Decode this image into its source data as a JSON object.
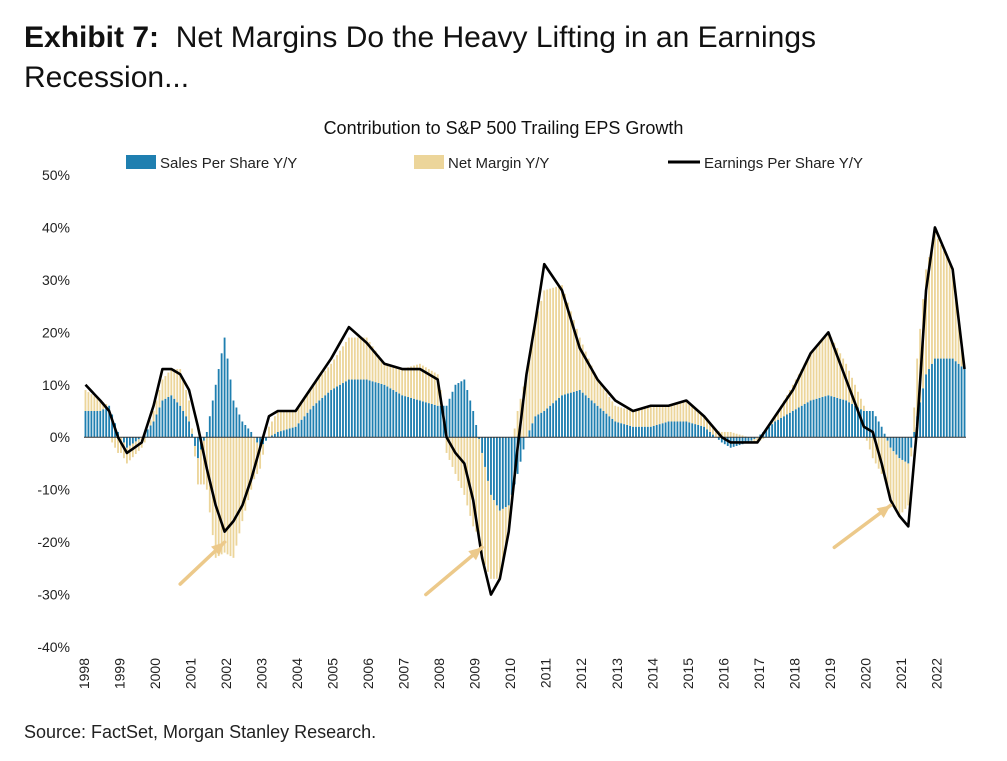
{
  "exhibit": {
    "label": "Exhibit 7:",
    "title": "Net Margins Do the Heavy Lifting in an Earnings Recession..."
  },
  "source": "Source: FactSet, Morgan Stanley Research.",
  "colors": {
    "sales": "#1f7fb0",
    "margin": "#ecd59a",
    "eps": "#000000",
    "arrow": "#ecc98a"
  },
  "chart_data": {
    "type": "bar",
    "title": "Contribution to S&P 500 Trailing EPS Growth",
    "xlabel": "",
    "ylabel": "",
    "ylim": [
      -40,
      50
    ],
    "y_ticks": [
      "-40%",
      "-30%",
      "-20%",
      "-10%",
      "0%",
      "10%",
      "20%",
      "30%",
      "40%",
      "50%"
    ],
    "x_tick_labels": [
      "1998",
      "1999",
      "2000",
      "2001",
      "2002",
      "2003",
      "2004",
      "2005",
      "2006",
      "2007",
      "2008",
      "2009",
      "2010",
      "2011",
      "2012",
      "2013",
      "2014",
      "2015",
      "2016",
      "2017",
      "2018",
      "2019",
      "2020",
      "2021",
      "2022"
    ],
    "legend_position": "top",
    "stacked": true,
    "frequency": "monthly",
    "start": "1998-01",
    "end": "2022-10",
    "series": [
      {
        "name": "Sales Per Share Y/Y",
        "kind": "bar",
        "anchors": [
          [
            "1998-01",
            5
          ],
          [
            "1998-06",
            5
          ],
          [
            "1998-09",
            6
          ],
          [
            "1998-12",
            1
          ],
          [
            "1999-03",
            -2
          ],
          [
            "1999-08",
            0
          ],
          [
            "1999-12",
            3
          ],
          [
            "2000-03",
            7
          ],
          [
            "2000-06",
            8
          ],
          [
            "2000-09",
            6
          ],
          [
            "2000-12",
            3
          ],
          [
            "2001-03",
            -4
          ],
          [
            "2001-06",
            1
          ],
          [
            "2001-09",
            10
          ],
          [
            "2001-12",
            19
          ],
          [
            "2002-03",
            7
          ],
          [
            "2002-06",
            3
          ],
          [
            "2002-09",
            1
          ],
          [
            "2002-12",
            -2
          ],
          [
            "2003-03",
            0
          ],
          [
            "2003-06",
            1
          ],
          [
            "2003-12",
            2
          ],
          [
            "2004-06",
            6
          ],
          [
            "2004-12",
            9
          ],
          [
            "2005-06",
            11
          ],
          [
            "2005-12",
            11
          ],
          [
            "2006-06",
            10
          ],
          [
            "2006-12",
            8
          ],
          [
            "2007-06",
            7
          ],
          [
            "2007-12",
            6
          ],
          [
            "2008-03",
            6
          ],
          [
            "2008-06",
            10
          ],
          [
            "2008-09",
            11
          ],
          [
            "2008-12",
            5
          ],
          [
            "2009-03",
            -3
          ],
          [
            "2009-06",
            -11
          ],
          [
            "2009-09",
            -14
          ],
          [
            "2009-12",
            -13
          ],
          [
            "2010-03",
            -7
          ],
          [
            "2010-06",
            0
          ],
          [
            "2010-09",
            4
          ],
          [
            "2010-12",
            5
          ],
          [
            "2011-06",
            8
          ],
          [
            "2011-12",
            9
          ],
          [
            "2012-06",
            6
          ],
          [
            "2012-12",
            3
          ],
          [
            "2013-06",
            2
          ],
          [
            "2013-12",
            2
          ],
          [
            "2014-06",
            3
          ],
          [
            "2014-12",
            3
          ],
          [
            "2015-06",
            2
          ],
          [
            "2015-12",
            -1
          ],
          [
            "2016-03",
            -2
          ],
          [
            "2016-09",
            -1
          ],
          [
            "2016-12",
            0
          ],
          [
            "2017-06",
            3
          ],
          [
            "2017-12",
            5
          ],
          [
            "2018-06",
            7
          ],
          [
            "2018-12",
            8
          ],
          [
            "2019-06",
            7
          ],
          [
            "2019-12",
            5
          ],
          [
            "2020-03",
            5
          ],
          [
            "2020-06",
            2
          ],
          [
            "2020-09",
            -2
          ],
          [
            "2020-12",
            -4
          ],
          [
            "2021-03",
            -5
          ],
          [
            "2021-06",
            4
          ],
          [
            "2021-09",
            12
          ],
          [
            "2021-12",
            15
          ],
          [
            "2022-06",
            15
          ],
          [
            "2022-10",
            13
          ]
        ]
      },
      {
        "name": "Net Margin Y/Y",
        "kind": "bar",
        "anchors": [
          [
            "1998-01",
            4
          ],
          [
            "1998-06",
            2
          ],
          [
            "1998-09",
            0
          ],
          [
            "1998-12",
            -3
          ],
          [
            "1999-03",
            -3
          ],
          [
            "1999-08",
            -2
          ],
          [
            "1999-12",
            2
          ],
          [
            "2000-03",
            4
          ],
          [
            "2000-06",
            5
          ],
          [
            "2000-09",
            7
          ],
          [
            "2000-12",
            4
          ],
          [
            "2001-03",
            -5
          ],
          [
            "2001-06",
            -10
          ],
          [
            "2001-09",
            -23
          ],
          [
            "2001-12",
            -22
          ],
          [
            "2002-03",
            -23
          ],
          [
            "2002-06",
            -16
          ],
          [
            "2002-09",
            -10
          ],
          [
            "2002-12",
            -4
          ],
          [
            "2003-03",
            2
          ],
          [
            "2003-06",
            4
          ],
          [
            "2003-12",
            3
          ],
          [
            "2004-06",
            4
          ],
          [
            "2004-12",
            5
          ],
          [
            "2005-06",
            8
          ],
          [
            "2005-12",
            8
          ],
          [
            "2006-06",
            4
          ],
          [
            "2006-12",
            5
          ],
          [
            "2007-06",
            7
          ],
          [
            "2007-12",
            6
          ],
          [
            "2008-03",
            -3
          ],
          [
            "2008-06",
            -7
          ],
          [
            "2008-09",
            -11
          ],
          [
            "2008-12",
            -17
          ],
          [
            "2009-03",
            -20
          ],
          [
            "2009-06",
            -16
          ],
          [
            "2009-09",
            -13
          ],
          [
            "2009-12",
            -5
          ],
          [
            "2010-03",
            5
          ],
          [
            "2010-06",
            12
          ],
          [
            "2010-09",
            18
          ],
          [
            "2010-12",
            23
          ],
          [
            "2011-06",
            21
          ],
          [
            "2011-12",
            10
          ],
          [
            "2012-06",
            5
          ],
          [
            "2012-12",
            3
          ],
          [
            "2013-06",
            3
          ],
          [
            "2013-12",
            4
          ],
          [
            "2014-06",
            3
          ],
          [
            "2014-12",
            4
          ],
          [
            "2015-06",
            2
          ],
          [
            "2015-12",
            1
          ],
          [
            "2016-03",
            1
          ],
          [
            "2016-09",
            0
          ],
          [
            "2016-12",
            -1
          ],
          [
            "2017-06",
            1
          ],
          [
            "2017-12",
            5
          ],
          [
            "2018-06",
            9
          ],
          [
            "2018-12",
            12
          ],
          [
            "2019-06",
            7
          ],
          [
            "2019-12",
            1
          ],
          [
            "2020-03",
            -4
          ],
          [
            "2020-06",
            -7
          ],
          [
            "2020-09",
            -10
          ],
          [
            "2020-12",
            -11
          ],
          [
            "2021-03",
            -8
          ],
          [
            "2021-06",
            11
          ],
          [
            "2021-09",
            20
          ],
          [
            "2021-12",
            24
          ],
          [
            "2022-06",
            17
          ],
          [
            "2022-10",
            0
          ]
        ]
      },
      {
        "name": "Earnings Per Share Y/Y",
        "kind": "line",
        "anchors": [
          [
            "1998-01",
            10
          ],
          [
            "1998-06",
            7
          ],
          [
            "1998-09",
            5
          ],
          [
            "1998-12",
            0
          ],
          [
            "1999-03",
            -3
          ],
          [
            "1999-08",
            -1
          ],
          [
            "1999-12",
            6
          ],
          [
            "2000-03",
            13
          ],
          [
            "2000-06",
            13
          ],
          [
            "2000-09",
            12
          ],
          [
            "2000-12",
            9
          ],
          [
            "2001-03",
            2
          ],
          [
            "2001-06",
            -6
          ],
          [
            "2001-09",
            -13
          ],
          [
            "2001-12",
            -18
          ],
          [
            "2002-03",
            -16
          ],
          [
            "2002-06",
            -13
          ],
          [
            "2002-09",
            -8
          ],
          [
            "2002-12",
            -2
          ],
          [
            "2003-03",
            4
          ],
          [
            "2003-06",
            5
          ],
          [
            "2003-12",
            5
          ],
          [
            "2004-06",
            10
          ],
          [
            "2004-12",
            15
          ],
          [
            "2005-06",
            21
          ],
          [
            "2005-12",
            18
          ],
          [
            "2006-06",
            14
          ],
          [
            "2006-12",
            13
          ],
          [
            "2007-06",
            13
          ],
          [
            "2007-12",
            11
          ],
          [
            "2008-03",
            0
          ],
          [
            "2008-06",
            -3
          ],
          [
            "2008-09",
            -5
          ],
          [
            "2008-12",
            -12
          ],
          [
            "2009-03",
            -23
          ],
          [
            "2009-06",
            -30
          ],
          [
            "2009-09",
            -27
          ],
          [
            "2009-12",
            -18
          ],
          [
            "2010-03",
            -2
          ],
          [
            "2010-06",
            12
          ],
          [
            "2010-09",
            22
          ],
          [
            "2010-12",
            33
          ],
          [
            "2011-06",
            28
          ],
          [
            "2011-12",
            17
          ],
          [
            "2012-06",
            11
          ],
          [
            "2012-12",
            7
          ],
          [
            "2013-06",
            5
          ],
          [
            "2013-12",
            6
          ],
          [
            "2014-06",
            6
          ],
          [
            "2014-12",
            7
          ],
          [
            "2015-06",
            4
          ],
          [
            "2015-12",
            0
          ],
          [
            "2016-03",
            -1
          ],
          [
            "2016-09",
            -1
          ],
          [
            "2016-12",
            -1
          ],
          [
            "2017-06",
            4
          ],
          [
            "2017-12",
            9
          ],
          [
            "2018-06",
            16
          ],
          [
            "2018-12",
            20
          ],
          [
            "2019-06",
            11
          ],
          [
            "2019-12",
            2
          ],
          [
            "2020-03",
            1
          ],
          [
            "2020-06",
            -5
          ],
          [
            "2020-09",
            -12
          ],
          [
            "2020-12",
            -15
          ],
          [
            "2021-03",
            -17
          ],
          [
            "2021-06",
            2
          ],
          [
            "2021-09",
            28
          ],
          [
            "2021-12",
            40
          ],
          [
            "2022-06",
            32
          ],
          [
            "2022-10",
            13
          ]
        ]
      }
    ],
    "annotations": [
      {
        "type": "arrow",
        "from": [
          "2000-09",
          -28
        ],
        "to": [
          "2001-12",
          -20
        ]
      },
      {
        "type": "arrow",
        "from": [
          "2007-08",
          -30
        ],
        "to": [
          "2009-03",
          -21
        ]
      },
      {
        "type": "arrow",
        "from": [
          "2019-02",
          -21
        ],
        "to": [
          "2020-09",
          -13
        ]
      }
    ]
  }
}
